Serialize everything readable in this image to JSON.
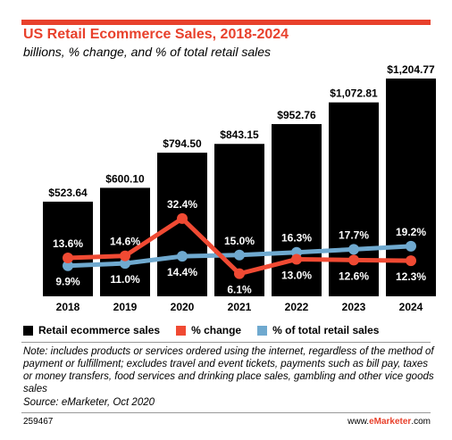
{
  "colors": {
    "accent_red": "#e8412c",
    "bar": "#000000",
    "change_line": "#f04a33",
    "share_line": "#6fa9cf"
  },
  "header": {
    "title": "US Retail Ecommerce Sales, 2018-2024",
    "subtitle": "billions, % change, and % of total retail sales"
  },
  "legend": {
    "sales": "Retail ecommerce sales",
    "change": "% change",
    "share": "% of total retail sales"
  },
  "footer": {
    "note": "Note: includes products or services ordered using the internet, regardless of the method of payment or fulfillment; excludes travel and event tickets, payments such as bill pay, taxes or money transfers, food services and drinking place sales, gambling and other vice goods sales",
    "source": "Source: eMarketer, Oct 2020",
    "chart_id": "259467",
    "brand_prefix": "www.",
    "brand_name": "eMarketer",
    "brand_suffix": ".com"
  },
  "chart_data": {
    "type": "bar",
    "title": "US Retail Ecommerce Sales, 2018-2024",
    "subtitle": "billions, % change, and % of total retail sales",
    "categories": [
      "2018",
      "2019",
      "2020",
      "2021",
      "2022",
      "2023",
      "2024"
    ],
    "series": [
      {
        "name": "Retail ecommerce sales",
        "type": "bar",
        "values": [
          523.64,
          600.1,
          794.5,
          843.15,
          952.76,
          1072.81,
          1204.77
        ],
        "labels": [
          "$523.64",
          "$600.10",
          "$794.50",
          "$843.15",
          "$952.76",
          "$1,072.81",
          "$1,204.77"
        ]
      },
      {
        "name": "% change",
        "type": "line",
        "values": [
          13.6,
          14.6,
          32.4,
          6.1,
          13.0,
          12.6,
          12.3
        ],
        "labels": [
          "13.6%",
          "14.6%",
          "32.4%",
          "6.1%",
          "13.0%",
          "12.6%",
          "12.3%"
        ]
      },
      {
        "name": "% of total retail sales",
        "type": "line",
        "values": [
          9.9,
          11.0,
          14.4,
          15.0,
          16.3,
          17.7,
          19.2
        ],
        "labels": [
          "9.9%",
          "11.0%",
          "14.4%",
          "15.0%",
          "16.3%",
          "17.7%",
          "19.2%"
        ]
      }
    ],
    "legend_position": "bottom",
    "grid": false
  }
}
